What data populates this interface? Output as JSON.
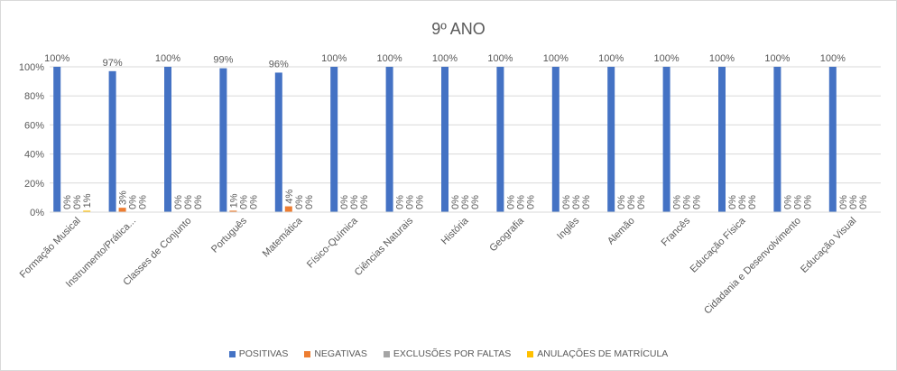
{
  "chart_data": {
    "type": "bar",
    "title": "9º ANO",
    "categories": [
      "Formação Musical",
      "Instrumento/Prática...",
      "Classes de Conjunto",
      "Português",
      "Matemática",
      "Físico-Química",
      "Ciências Naturais",
      "História",
      "Geografia",
      "Inglês",
      "Alemão",
      "Francês",
      "Educação Física",
      "Cidadania e Desenvolvimento",
      "Educação Visual"
    ],
    "series": [
      {
        "name": "POSITIVAS",
        "color": "#4472c4",
        "values": [
          100,
          97,
          100,
          99,
          96,
          100,
          100,
          100,
          100,
          100,
          100,
          100,
          100,
          100,
          100
        ],
        "value_labels": [
          "100%",
          "97%",
          "100%",
          "99%",
          "96%",
          "100%",
          "100%",
          "100%",
          "100%",
          "100%",
          "100%",
          "100%",
          "100%",
          "100%",
          "100%"
        ]
      },
      {
        "name": "NEGATIVAS",
        "color": "#ed7d31",
        "values": [
          0,
          3,
          0,
          1,
          4,
          0,
          0,
          0,
          0,
          0,
          0,
          0,
          0,
          0,
          0
        ],
        "value_labels": [
          "0%",
          "3%",
          "0%",
          "1%",
          "4%",
          "0%",
          "0%",
          "0%",
          "0%",
          "0%",
          "0%",
          "0%",
          "0%",
          "0%",
          "0%"
        ]
      },
      {
        "name": "EXCLUSÕES POR FALTAS",
        "color": "#a5a5a5",
        "values": [
          0,
          0,
          0,
          0,
          0,
          0,
          0,
          0,
          0,
          0,
          0,
          0,
          0,
          0,
          0
        ],
        "value_labels": [
          "0%",
          "0%",
          "0%",
          "0%",
          "0%",
          "0%",
          "0%",
          "0%",
          "0%",
          "0%",
          "0%",
          "0%",
          "0%",
          "0%",
          "0%"
        ]
      },
      {
        "name": "ANULAÇÕES DE MATRÍCULA",
        "color": "#ffc000",
        "values": [
          1,
          0,
          0,
          0,
          0,
          0,
          0,
          0,
          0,
          0,
          0,
          0,
          0,
          0,
          0
        ],
        "value_labels": [
          "1%",
          "0%",
          "0%",
          "0%",
          "0%",
          "0%",
          "0%",
          "0%",
          "0%",
          "0%",
          "0%",
          "0%",
          "0%",
          "0%",
          "0%"
        ]
      }
    ],
    "ylim": [
      0,
      100
    ],
    "yticks": [
      {
        "value": 0,
        "label": "0%"
      },
      {
        "value": 20,
        "label": "20%"
      },
      {
        "value": 40,
        "label": "40%"
      },
      {
        "value": 60,
        "label": "60%"
      },
      {
        "value": 80,
        "label": "80%"
      },
      {
        "value": 100,
        "label": "100%"
      }
    ],
    "grid": true,
    "legend": "bottom"
  }
}
